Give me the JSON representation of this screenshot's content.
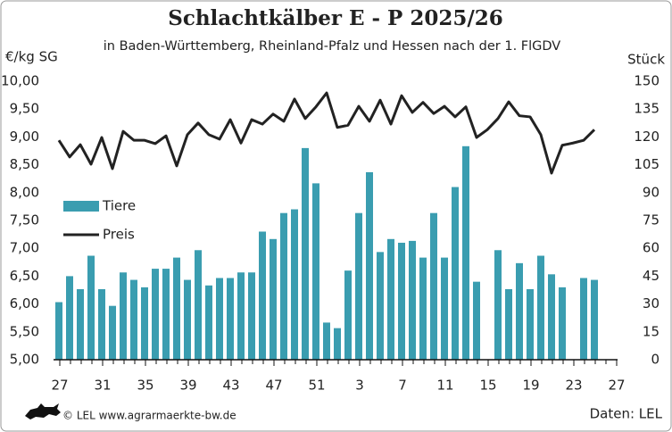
{
  "chart_data": {
    "type": "bar_line",
    "title": "Schlachtkälber E - P 2025/26",
    "subtitle": "in Baden-Württemberg, Rheinland-Pfalz und Hessen nach der 1. FlGDV",
    "y_label": "€/kg SG",
    "y2_label": "Stück",
    "source": "© LEL www.agrarmaerkte-bw.de",
    "data_credit": "Daten: LEL",
    "categories": [
      "27",
      null,
      null,
      null,
      "31",
      null,
      null,
      null,
      "35",
      null,
      null,
      null,
      "39",
      null,
      null,
      null,
      "43",
      null,
      null,
      null,
      "47",
      null,
      null,
      null,
      "51",
      null,
      null,
      null,
      "3",
      null,
      null,
      null,
      "7",
      null,
      null,
      null,
      "11",
      null,
      null,
      null,
      "15",
      null,
      null,
      null,
      "19",
      null,
      null,
      null,
      "23",
      null,
      null,
      null,
      "27"
    ],
    "series": [
      {
        "name": "Tiere",
        "kind": "bar",
        "axis": "y2",
        "color": "#3a9db0",
        "values": [
          31,
          45,
          38,
          56,
          38,
          29,
          47,
          43,
          39,
          49,
          49,
          55,
          43,
          59,
          40,
          44,
          44,
          47,
          47,
          69,
          65,
          79,
          81,
          114,
          95,
          20,
          17,
          48,
          79,
          101,
          58,
          65,
          63,
          64,
          55,
          79,
          55,
          93,
          115,
          42,
          null,
          59,
          38,
          52,
          38,
          56,
          46,
          39,
          null,
          44,
          43,
          null,
          null
        ]
      },
      {
        "name": "Preis",
        "kind": "line",
        "axis": "y",
        "color": "#222222",
        "values": [
          8.94,
          8.64,
          8.86,
          8.51,
          8.99,
          8.43,
          9.1,
          8.94,
          8.94,
          8.88,
          9.02,
          8.48,
          9.04,
          9.25,
          9.04,
          8.96,
          9.31,
          8.89,
          9.31,
          9.23,
          9.41,
          9.28,
          9.68,
          9.33,
          9.54,
          9.79,
          9.17,
          9.21,
          9.55,
          9.28,
          9.66,
          9.23,
          9.74,
          9.44,
          9.62,
          9.42,
          9.55,
          9.36,
          9.54,
          8.99,
          9.13,
          9.33,
          9.63,
          9.38,
          9.36,
          9.04,
          8.35,
          8.85,
          8.89,
          8.94,
          9.13,
          null,
          null
        ]
      }
    ],
    "ylim": [
      5,
      10
    ],
    "yticks": [
      {
        "value": 5,
        "label": "5,00"
      },
      {
        "value": 5.5,
        "label": "5,50"
      },
      {
        "value": 6,
        "label": "6,00"
      },
      {
        "value": 6.5,
        "label": "6,50"
      },
      {
        "value": 7,
        "label": "7,00"
      },
      {
        "value": 7.5,
        "label": "7,50"
      },
      {
        "value": 8,
        "label": "8,00"
      },
      {
        "value": 8.5,
        "label": "8,50"
      },
      {
        "value": 9,
        "label": "9,00"
      },
      {
        "value": 9.5,
        "label": "9,50"
      },
      {
        "value": 10,
        "label": "10,00"
      }
    ],
    "y2lim": [
      0,
      150
    ],
    "y2ticks": [
      0,
      15,
      30,
      45,
      60,
      75,
      90,
      105,
      120,
      135,
      150
    ],
    "grid": false
  }
}
